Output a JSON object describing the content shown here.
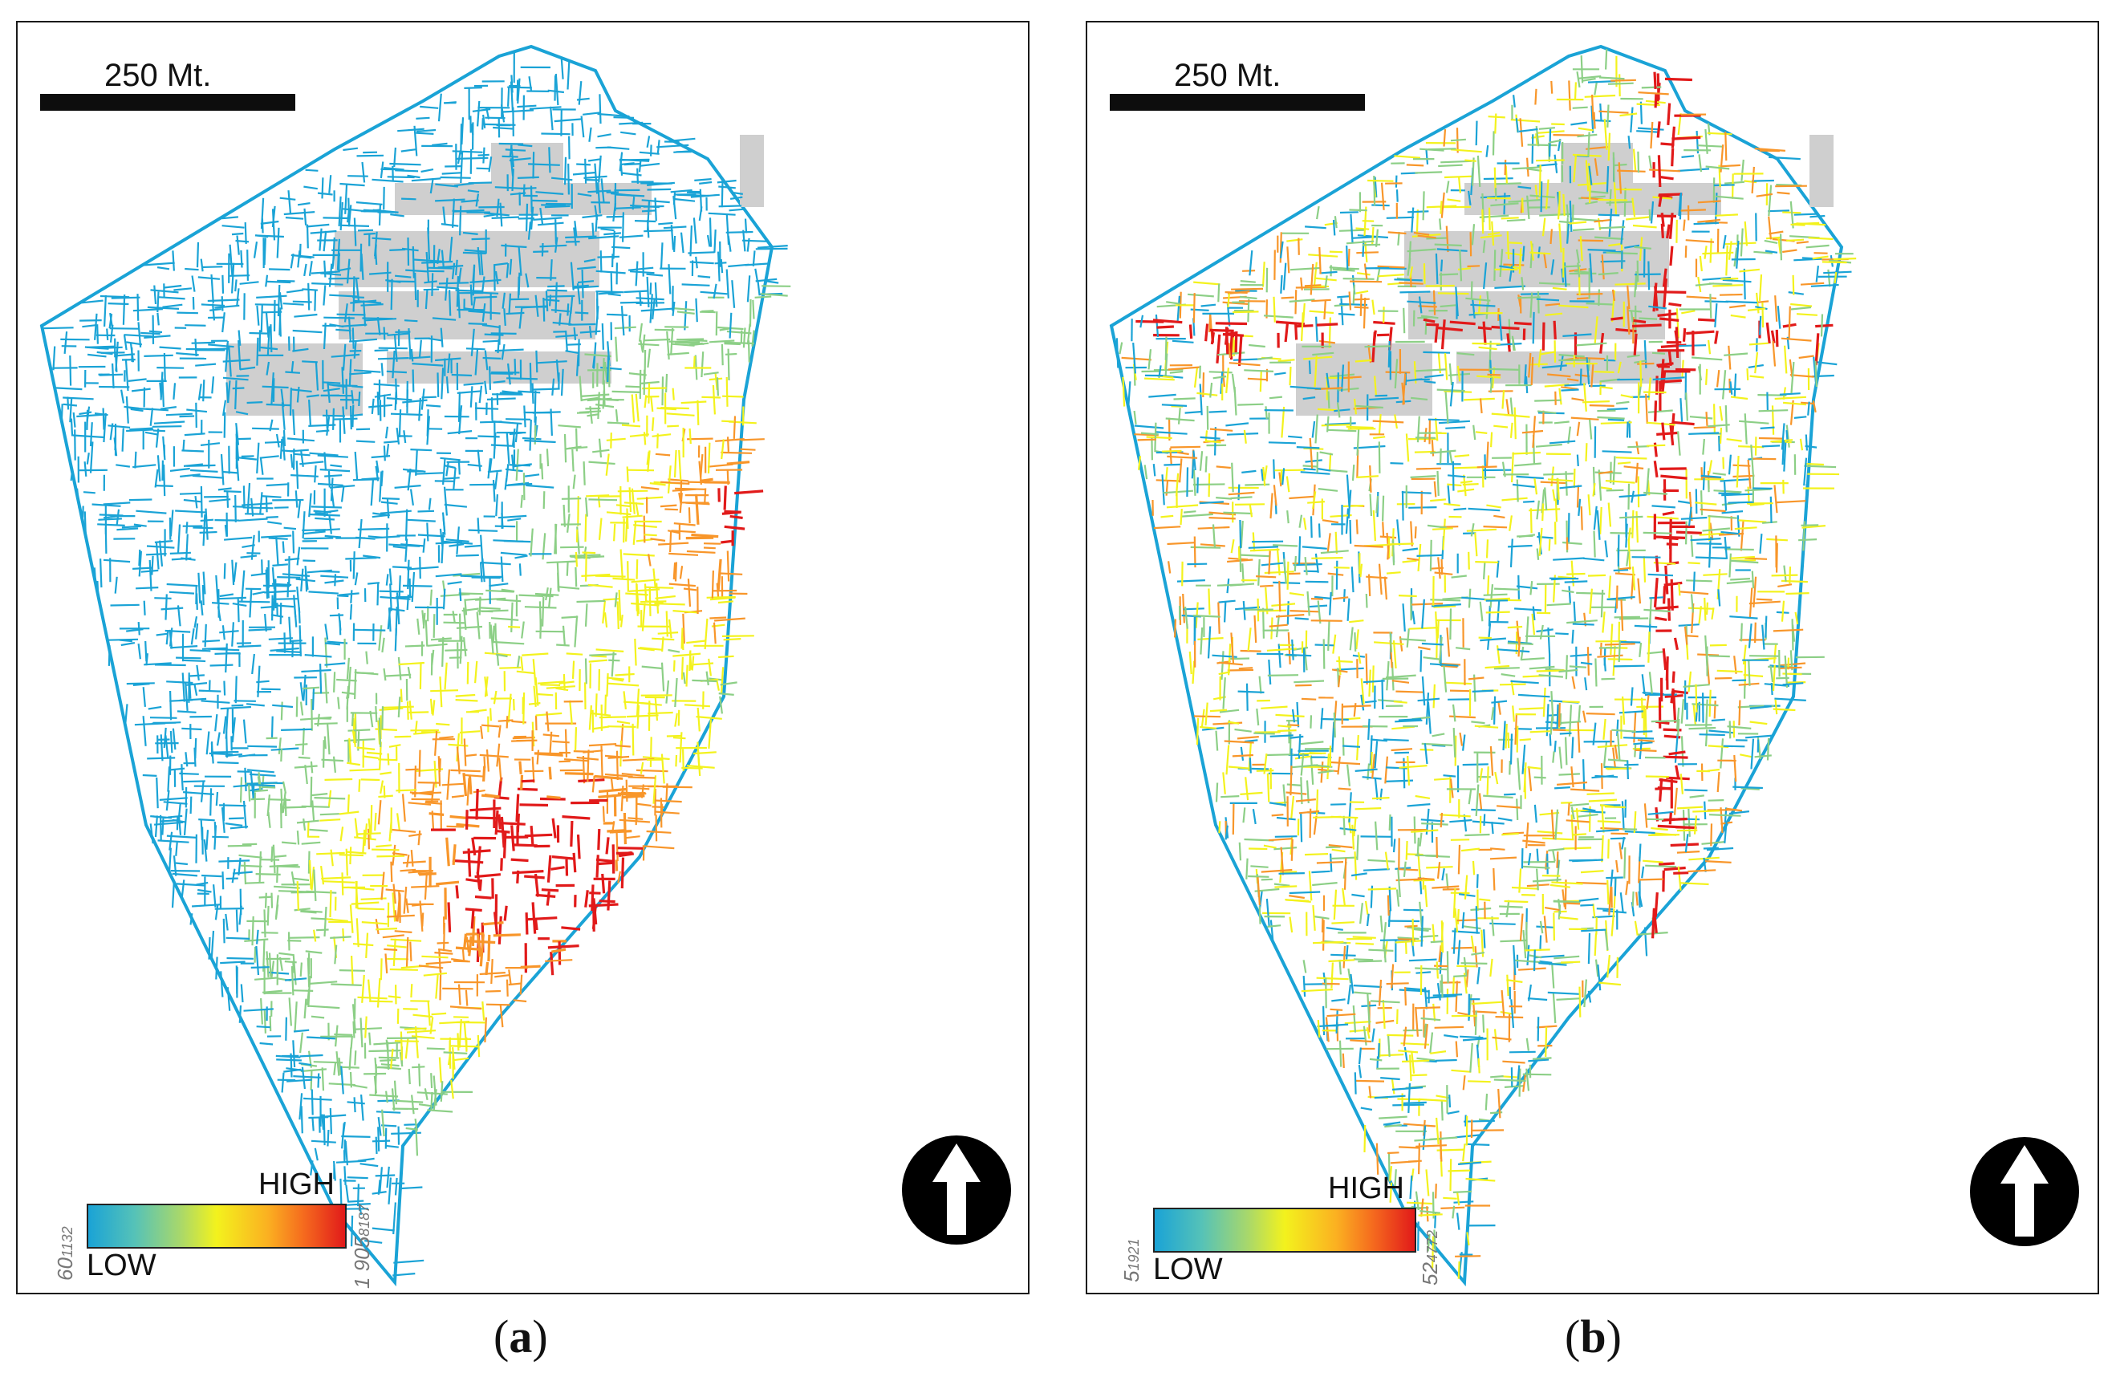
{
  "panels": [
    {
      "id": "a",
      "scale_label": "250 Mt.",
      "legend": {
        "high": "HIGH",
        "low": "LOW",
        "min": "60",
        "min_sub": "1132",
        "max": "1 905",
        "max_sub": "8187"
      },
      "caption_letter": "a",
      "map_pattern": "hotspot-south"
    },
    {
      "id": "b",
      "scale_label": "250 Mt.",
      "legend": {
        "high": "HIGH",
        "low": "LOW",
        "min": "5",
        "min_sub": "1921",
        "max": "52",
        "max_sub": "4772"
      },
      "caption_letter": "b",
      "map_pattern": "distributed"
    }
  ],
  "colors": {
    "low": "#1aa3d6",
    "mid_low": "#8ccf86",
    "mid": "#f3f21d",
    "mid_high": "#f8962a",
    "high": "#e11a1a",
    "buildings": "#cfcfcf"
  },
  "icons": {
    "north_arrow": "north-arrow-icon"
  }
}
